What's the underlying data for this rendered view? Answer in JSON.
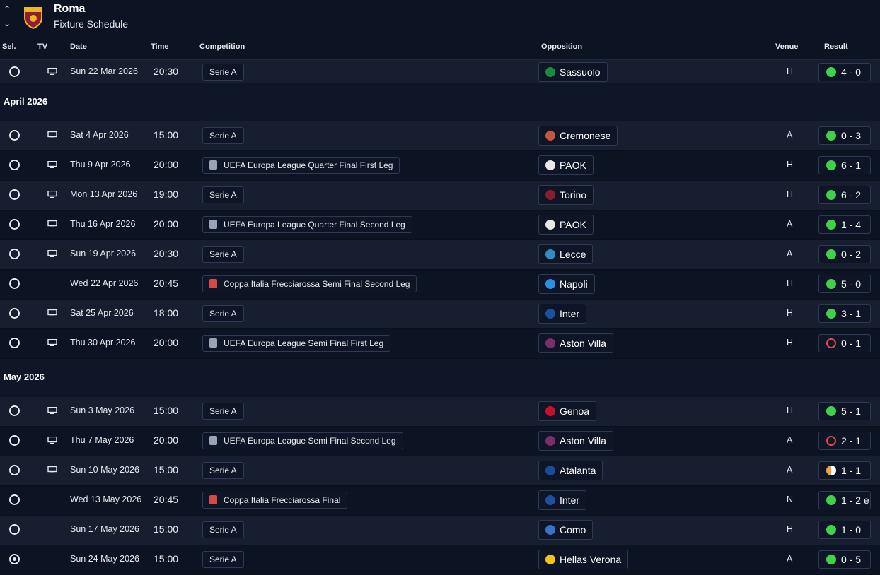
{
  "header": {
    "club_name": "Roma",
    "page_title": "Fixture Schedule"
  },
  "columns": {
    "sel": "Sel.",
    "tv": "TV",
    "date": "Date",
    "time": "Time",
    "competition": "Competition",
    "opposition": "Opposition",
    "venue": "Venue",
    "result": "Result"
  },
  "colors": {
    "win": "#3fd14a",
    "loss": "#e5484d",
    "draw": "#f0a33a",
    "background": "#0c1323"
  },
  "months": [
    "April 2026",
    "May 2026"
  ],
  "fixtures": [
    {
      "tv": true,
      "date": "Sun 22 Mar 2026",
      "time": "20:30",
      "competition": "Serie A",
      "comp_icon": "",
      "opposition": "Sassuolo",
      "opp_icon": "sassuolo-crest-icon",
      "venue": "H",
      "result": "4 - 0",
      "outcome": "win"
    },
    {
      "tv": true,
      "date": "Sat 4 Apr 2026",
      "time": "15:00",
      "competition": "Serie A",
      "comp_icon": "",
      "opposition": "Cremonese",
      "opp_icon": "cremonese-crest-icon",
      "venue": "A",
      "result": "0 - 3",
      "outcome": "win"
    },
    {
      "tv": true,
      "date": "Thu 9 Apr 2026",
      "time": "20:00",
      "competition": "UEFA Europa League Quarter Final First Leg",
      "comp_icon": "europa-league-trophy-icon",
      "opposition": "PAOK",
      "opp_icon": "paok-crest-icon",
      "venue": "H",
      "result": "6 - 1",
      "outcome": "win"
    },
    {
      "tv": true,
      "date": "Mon 13 Apr 2026",
      "time": "19:00",
      "competition": "Serie A",
      "comp_icon": "",
      "opposition": "Torino",
      "opp_icon": "torino-crest-icon",
      "venue": "H",
      "result": "6 - 2",
      "outcome": "win"
    },
    {
      "tv": true,
      "date": "Thu 16 Apr 2026",
      "time": "20:00",
      "competition": "UEFA Europa League Quarter Final Second Leg",
      "comp_icon": "europa-league-trophy-icon",
      "opposition": "PAOK",
      "opp_icon": "paok-crest-icon",
      "venue": "A",
      "result": "1 - 4",
      "outcome": "win"
    },
    {
      "tv": true,
      "date": "Sun 19 Apr 2026",
      "time": "20:30",
      "competition": "Serie A",
      "comp_icon": "",
      "opposition": "Lecce",
      "opp_icon": "lecce-crest-icon",
      "venue": "A",
      "result": "0 - 2",
      "outcome": "win"
    },
    {
      "tv": false,
      "date": "Wed 22 Apr 2026",
      "time": "20:45",
      "competition": "Coppa Italia Frecciarossa Semi Final Second Leg",
      "comp_icon": "coppa-italia-icon",
      "opposition": "Napoli",
      "opp_icon": "napoli-crest-icon",
      "venue": "H",
      "result": "5 - 0",
      "outcome": "win"
    },
    {
      "tv": true,
      "date": "Sat 25 Apr 2026",
      "time": "18:00",
      "competition": "Serie A",
      "comp_icon": "",
      "opposition": "Inter",
      "opp_icon": "inter-crest-icon",
      "venue": "H",
      "result": "3 - 1",
      "outcome": "win"
    },
    {
      "tv": true,
      "date": "Thu 30 Apr 2026",
      "time": "20:00",
      "competition": "UEFA Europa League Semi Final First Leg",
      "comp_icon": "europa-league-trophy-icon",
      "opposition": "Aston Villa",
      "opp_icon": "aston-villa-crest-icon",
      "venue": "H",
      "result": "0 - 1",
      "outcome": "loss"
    },
    {
      "tv": true,
      "date": "Sun 3 May 2026",
      "time": "15:00",
      "competition": "Serie A",
      "comp_icon": "",
      "opposition": "Genoa",
      "opp_icon": "genoa-crest-icon",
      "venue": "H",
      "result": "5 - 1",
      "outcome": "win"
    },
    {
      "tv": true,
      "date": "Thu 7 May 2026",
      "time": "20:00",
      "competition": "UEFA Europa League Semi Final Second Leg",
      "comp_icon": "europa-league-trophy-icon",
      "opposition": "Aston Villa",
      "opp_icon": "aston-villa-crest-icon",
      "venue": "A",
      "result": "2 - 1",
      "outcome": "loss"
    },
    {
      "tv": true,
      "date": "Sun 10 May 2026",
      "time": "15:00",
      "competition": "Serie A",
      "comp_icon": "",
      "opposition": "Atalanta",
      "opp_icon": "atalanta-crest-icon",
      "venue": "A",
      "result": "1 - 1",
      "outcome": "draw"
    },
    {
      "tv": false,
      "date": "Wed 13 May 2026",
      "time": "20:45",
      "competition": "Coppa Italia Frecciarossa Final",
      "comp_icon": "coppa-italia-icon",
      "opposition": "Inter",
      "opp_icon": "inter-crest-icon",
      "venue": "N",
      "result": "1 - 2 e",
      "outcome": "win"
    },
    {
      "tv": false,
      "date": "Sun 17 May 2026",
      "time": "15:00",
      "competition": "Serie A",
      "comp_icon": "",
      "opposition": "Como",
      "opp_icon": "como-crest-icon",
      "venue": "H",
      "result": "1 - 0",
      "outcome": "win"
    },
    {
      "tv": false,
      "date": "Sun 24 May 2026",
      "time": "15:00",
      "competition": "Serie A",
      "comp_icon": "",
      "opposition": "Hellas Verona",
      "opp_icon": "hellas-verona-crest-icon",
      "venue": "A",
      "result": "0 - 5",
      "outcome": "win",
      "selected": true
    }
  ]
}
